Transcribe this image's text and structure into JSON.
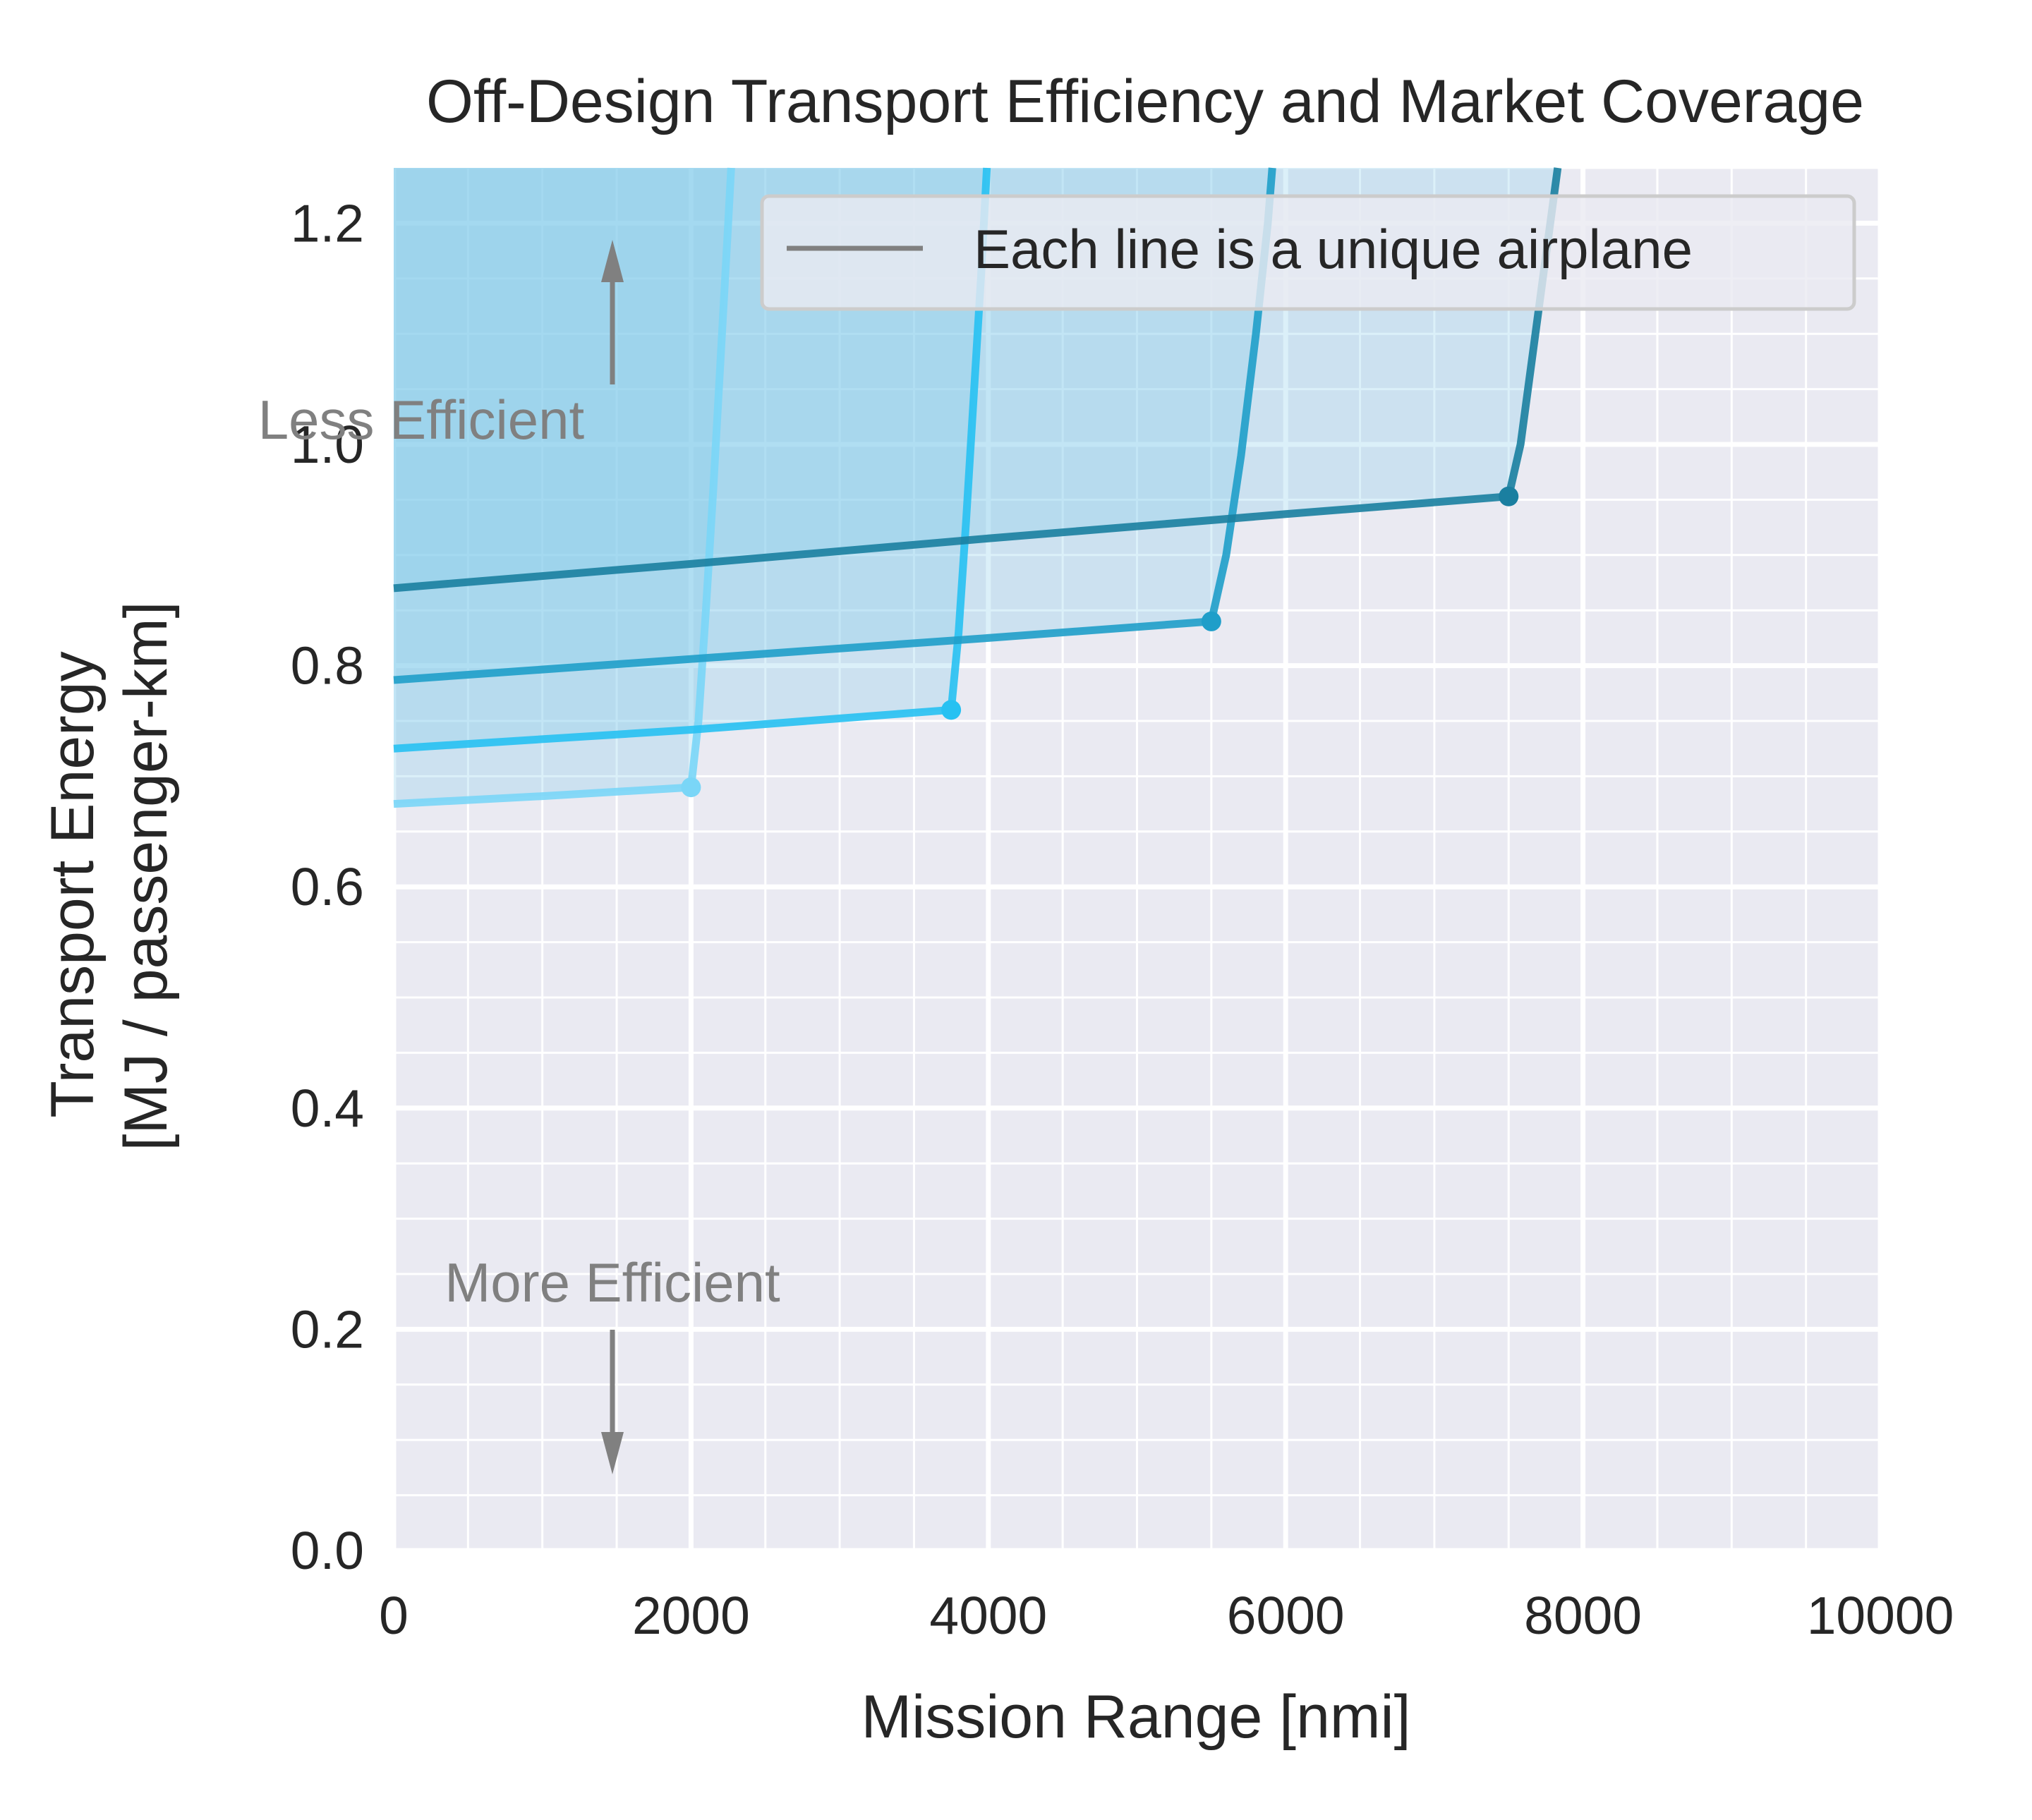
{
  "chart_data": {
    "type": "line",
    "title": "Off-Design Transport Efficiency and Market Coverage",
    "xlabel": "Mission Range [nmi]",
    "ylabel_lines": [
      "Transport Energy",
      "[MJ / passenger-km]"
    ],
    "xlim": [
      0,
      10000
    ],
    "ylim": [
      0,
      1.25
    ],
    "xticks": [
      0,
      2000,
      4000,
      6000,
      8000,
      10000
    ],
    "xtick_labels": [
      "0",
      "2000",
      "4000",
      "6000",
      "8000",
      "10000"
    ],
    "yticks": [
      0.0,
      0.2,
      0.4,
      0.6,
      0.8,
      1.0,
      1.2
    ],
    "ytick_labels": [
      "0.0",
      "0.2",
      "0.4",
      "0.6",
      "0.8",
      "1.0",
      "1.2"
    ],
    "grid": true,
    "minor_grid": true,
    "legend": {
      "placement": "top-right",
      "entries": [
        "Each line is a unique airplane"
      ],
      "color": "#808080"
    },
    "annotations": {
      "less_efficient": "Less Efficient",
      "more_efficient": "More Efficient"
    },
    "colors": {
      "background": "#eaeaf2",
      "grid": "#ffffff",
      "region_fill": "#87ceeb",
      "annotation": "#808080"
    },
    "series": [
      {
        "color": "#7ad6f7",
        "design_point": {
          "x": 2000,
          "y": 0.69
        },
        "points": [
          {
            "x": 0,
            "y": 0.675
          },
          {
            "x": 1000,
            "y": 0.682
          },
          {
            "x": 2000,
            "y": 0.69
          },
          {
            "x": 2050,
            "y": 0.75
          },
          {
            "x": 2100,
            "y": 0.85
          },
          {
            "x": 2150,
            "y": 0.96
          },
          {
            "x": 2200,
            "y": 1.08
          },
          {
            "x": 2250,
            "y": 1.2
          },
          {
            "x": 2270,
            "y": 1.25
          }
        ]
      },
      {
        "color": "#27c1f2",
        "design_point": {
          "x": 3750,
          "y": 0.76
        },
        "points": [
          {
            "x": 0,
            "y": 0.725
          },
          {
            "x": 2000,
            "y": 0.742
          },
          {
            "x": 3750,
            "y": 0.76
          },
          {
            "x": 3800,
            "y": 0.83
          },
          {
            "x": 3850,
            "y": 0.93
          },
          {
            "x": 3900,
            "y": 1.04
          },
          {
            "x": 3950,
            "y": 1.15
          },
          {
            "x": 3990,
            "y": 1.25
          }
        ]
      },
      {
        "color": "#1f9ec9",
        "design_point": {
          "x": 5500,
          "y": 0.84
        },
        "points": [
          {
            "x": 0,
            "y": 0.787
          },
          {
            "x": 2000,
            "y": 0.806
          },
          {
            "x": 4000,
            "y": 0.825
          },
          {
            "x": 5500,
            "y": 0.84
          },
          {
            "x": 5600,
            "y": 0.9
          },
          {
            "x": 5700,
            "y": 0.99
          },
          {
            "x": 5800,
            "y": 1.1
          },
          {
            "x": 5880,
            "y": 1.2
          },
          {
            "x": 5910,
            "y": 1.25
          }
        ]
      },
      {
        "color": "#1a7fa0",
        "design_point": {
          "x": 7500,
          "y": 0.953
        },
        "points": [
          {
            "x": 0,
            "y": 0.87
          },
          {
            "x": 2000,
            "y": 0.892
          },
          {
            "x": 4000,
            "y": 0.915
          },
          {
            "x": 6000,
            "y": 0.937
          },
          {
            "x": 7500,
            "y": 0.953
          },
          {
            "x": 7580,
            "y": 1.0
          },
          {
            "x": 7680,
            "y": 1.1
          },
          {
            "x": 7780,
            "y": 1.2
          },
          {
            "x": 7830,
            "y": 1.25
          }
        ]
      }
    ]
  }
}
